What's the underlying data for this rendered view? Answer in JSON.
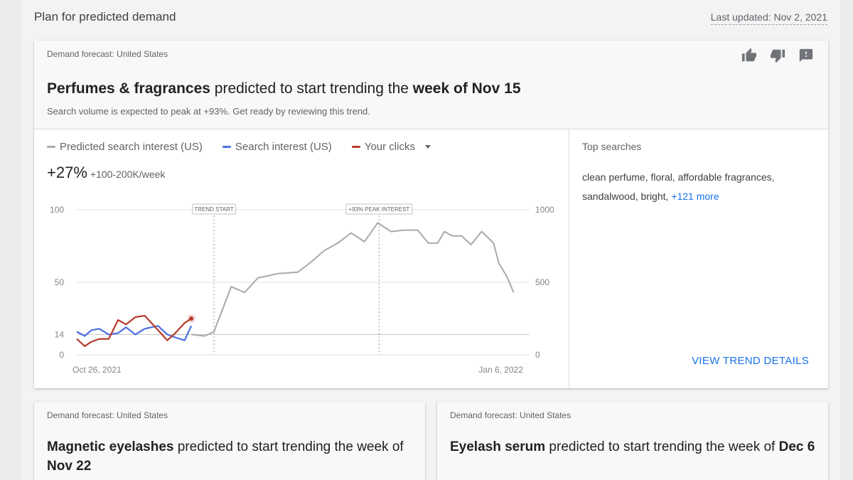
{
  "page": {
    "title": "Plan for predicted demand",
    "last_updated": "Last updated: Nov 2, 2021"
  },
  "colors": {
    "predicted": "#a9a9a9",
    "interest": "#4c6fe0",
    "clicks": "#b83a2b",
    "link": "#1a73e8"
  },
  "main_card": {
    "eyebrow": "Demand forecast: United States",
    "headline_bold1": "Perfumes & fragrances",
    "headline_mid": " predicted to start trending the ",
    "headline_bold2": "week of Nov 15",
    "subtitle": "Search volume is expected to peak at +93%. Get ready by reviewing this trend.",
    "feedback_icons": [
      "thumb-up-icon",
      "thumb-down-icon",
      "feedback-icon"
    ],
    "legend": {
      "predicted": "Predicted search interest (US)",
      "interest": "Search interest (US)",
      "clicks": "Your clicks"
    },
    "metric_big": "+27%",
    "metric_small": "+100-200K/week",
    "top_searches_title": "Top searches",
    "top_searches_text": "clean perfume, floral, affordable fragrances, sandalwood, bright, ",
    "top_searches_more": "+121 more",
    "view_link": "VIEW TREND DETAILS"
  },
  "chart_data": {
    "type": "line",
    "left_axis": {
      "ticks": [
        0,
        14,
        50,
        100
      ],
      "range": [
        0,
        100
      ]
    },
    "right_axis": {
      "ticks": [
        0,
        500,
        1000
      ],
      "range": [
        0,
        1000
      ]
    },
    "x_labels": {
      "start": "Oct 26, 2021",
      "end": "Jan 6, 2022"
    },
    "annotations": [
      {
        "label": "TREND START",
        "x": 10.3
      },
      {
        "label": "+93% PEAK INTEREST",
        "x": 22.7
      }
    ],
    "reference_line": 14,
    "series": [
      {
        "name": "Predicted search interest (US)",
        "axis": "left",
        "x": [
          8.6,
          9.6,
          10.3,
          11.6,
          12.6,
          13.6,
          15.1,
          16.6,
          17.6,
          18.6,
          19.6,
          20.6,
          21.6,
          22.6,
          23.6,
          24.6,
          25.6,
          26.4,
          27.1,
          27.6,
          28.2,
          28.9,
          29.6,
          30.4,
          31.3,
          31.7,
          32.3,
          32.8
        ],
        "y": [
          14,
          13,
          16,
          47,
          43,
          53,
          56,
          57,
          64,
          72,
          77,
          84,
          78,
          91,
          85,
          86,
          86,
          77,
          77,
          85,
          82,
          82,
          76,
          85,
          77,
          63,
          54,
          43
        ]
      },
      {
        "name": "Search interest (US)",
        "axis": "left",
        "x": [
          0,
          0.6,
          1.1,
          1.7,
          2.4,
          3.1,
          3.7,
          4.4,
          5.1,
          6.1,
          6.8,
          7.4,
          8.1,
          8.6
        ],
        "y": [
          16,
          13,
          17,
          18,
          14,
          15,
          19,
          14,
          18,
          20,
          14,
          12,
          10,
          20
        ]
      },
      {
        "name": "Your clicks",
        "axis": "left",
        "x": [
          0,
          0.6,
          1.1,
          1.7,
          2.4,
          3.1,
          3.7,
          4.4,
          5.1,
          6.1,
          6.8,
          7.4,
          8.1,
          8.6
        ],
        "y": [
          11,
          6,
          9,
          11,
          11,
          24,
          21,
          26,
          27,
          17,
          10,
          15,
          22,
          25
        ]
      }
    ]
  },
  "card2": {
    "eyebrow": "Demand forecast: United States",
    "headline_bold1": "Magnetic eyelashes",
    "headline_mid": " predicted to start trending the week of ",
    "headline_bold2": "Nov 22"
  },
  "card3": {
    "eyebrow": "Demand forecast: United States",
    "headline_bold1": "Eyelash serum",
    "headline_mid": " predicted to start trending the week of ",
    "headline_bold2": "Dec 6"
  }
}
